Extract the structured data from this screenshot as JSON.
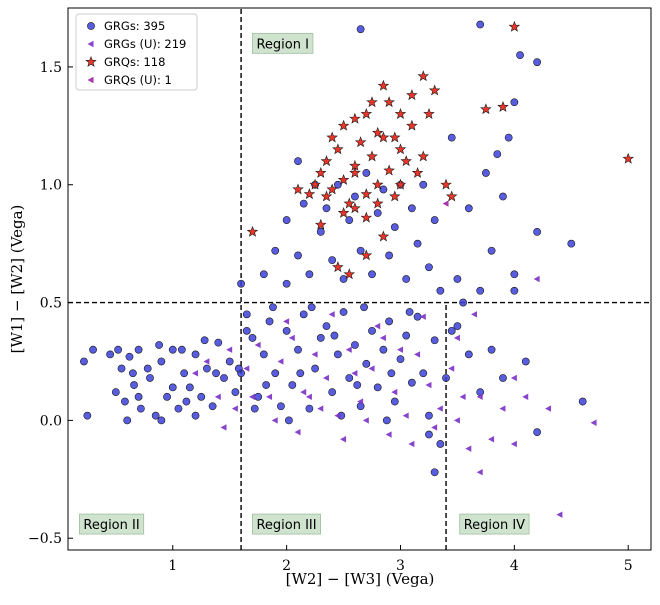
{
  "chart_data": {
    "type": "scatter",
    "xlabel": "[W2] − [W3] (Vega)",
    "ylabel": "[W1] − [W2] (Vega)",
    "xlim": [
      0.08,
      5.2
    ],
    "ylim": [
      -0.55,
      1.75
    ],
    "xticks": [
      {
        "v": 1,
        "label": "1"
      },
      {
        "v": 2,
        "label": "2"
      },
      {
        "v": 3,
        "label": "3"
      },
      {
        "v": 4,
        "label": "4"
      },
      {
        "v": 5,
        "label": "5"
      }
    ],
    "yticks": [
      {
        "v": -0.5,
        "label": "−0.5"
      },
      {
        "v": 0.0,
        "label": "0.0"
      },
      {
        "v": 0.5,
        "label": "0.5"
      },
      {
        "v": 1.0,
        "label": "1.0"
      },
      {
        "v": 1.5,
        "label": "1.5"
      }
    ],
    "cut_lines": [
      {
        "name": "vertical-1.6",
        "x": 1.6,
        "y_from": -0.55,
        "y_to": 1.75
      },
      {
        "name": "horizontal-0.5",
        "y": 0.5,
        "x_from": 0.08,
        "x_to": 5.2
      },
      {
        "name": "vertical-3.4",
        "x": 3.4,
        "y_from": -0.55,
        "y_to": 0.5
      }
    ],
    "regions": [
      {
        "label": "Region I",
        "x": 1.7,
        "y": 1.6
      },
      {
        "label": "Region II",
        "x": 0.18,
        "y": -0.44
      },
      {
        "label": "Region III",
        "x": 1.7,
        "y": -0.44
      },
      {
        "label": "Region IV",
        "x": 3.52,
        "y": -0.44
      }
    ],
    "colors": {
      "grg": "#3b3fd9",
      "grg_u": "#7b2fc7",
      "grq": "#e8362a",
      "grq_u": "#a020a0",
      "edge": "#1a1a1a",
      "region_bg": "#cfe3cf",
      "region_edge": "#9fbf9f"
    },
    "legend": [
      {
        "key": "grg",
        "label": "GRGs: 395"
      },
      {
        "key": "grg_u",
        "label": "GRGs (U): 219"
      },
      {
        "key": "grq",
        "label": "GRQs: 118"
      },
      {
        "key": "grq_u",
        "label": "GRQs (U): 1"
      }
    ],
    "series": [
      {
        "name": "GRGs",
        "key": "grg",
        "marker": "circle",
        "count": 395,
        "note": "detections; dense clump x 0.4-1.6 y 0-0.3, band x 1.6-3.4 y 0-0.5, cloud x 2-3.5 y 0.5-1.1, scattered outliers",
        "points": [
          [
            0.3,
            0.3
          ],
          [
            0.45,
            0.28
          ],
          [
            0.55,
            0.22
          ],
          [
            0.62,
            0.27
          ],
          [
            0.7,
            0.3
          ],
          [
            0.5,
            0.12
          ],
          [
            0.58,
            0.08
          ],
          [
            0.66,
            0.15
          ],
          [
            0.72,
            0.05
          ],
          [
            0.8,
            0.18
          ],
          [
            0.85,
            0.02
          ],
          [
            0.9,
            0.25
          ],
          [
            0.95,
            0.1
          ],
          [
            1.0,
            0.3
          ],
          [
            1.05,
            0.05
          ],
          [
            1.1,
            0.2
          ],
          [
            1.15,
            0.14
          ],
          [
            1.2,
            0.28
          ],
          [
            1.25,
            0.1
          ],
          [
            1.3,
            0.22
          ],
          [
            1.35,
            0.06
          ],
          [
            1.4,
            0.33
          ],
          [
            1.45,
            0.18
          ],
          [
            1.5,
            0.25
          ],
          [
            1.55,
            0.12
          ],
          [
            0.6,
            0.0
          ],
          [
            0.7,
            0.1
          ],
          [
            0.9,
            0.0
          ],
          [
            1.0,
            0.14
          ],
          [
            1.2,
            0.02
          ],
          [
            0.78,
            0.22
          ],
          [
            0.88,
            0.32
          ],
          [
            1.08,
            0.3
          ],
          [
            1.28,
            0.34
          ],
          [
            0.25,
            0.02
          ],
          [
            0.22,
            0.25
          ],
          [
            0.52,
            0.3
          ],
          [
            0.65,
            0.2
          ],
          [
            1.38,
            0.2
          ],
          [
            1.12,
            0.08
          ],
          [
            1.6,
            0.2
          ],
          [
            1.7,
            0.35
          ],
          [
            1.75,
            0.1
          ],
          [
            1.8,
            0.28
          ],
          [
            1.85,
            0.42
          ],
          [
            1.9,
            0.2
          ],
          [
            1.95,
            0.06
          ],
          [
            2.0,
            0.38
          ],
          [
            2.05,
            0.15
          ],
          [
            2.1,
            0.3
          ],
          [
            2.15,
            0.45
          ],
          [
            2.2,
            0.05
          ],
          [
            2.25,
            0.22
          ],
          [
            2.3,
            0.35
          ],
          [
            2.35,
            0.4
          ],
          [
            2.4,
            0.12
          ],
          [
            2.45,
            0.28
          ],
          [
            2.5,
            0.46
          ],
          [
            2.55,
            0.18
          ],
          [
            2.6,
            0.32
          ],
          [
            2.65,
            0.06
          ],
          [
            2.7,
            0.24
          ],
          [
            2.75,
            0.38
          ],
          [
            2.8,
            0.14
          ],
          [
            2.85,
            0.3
          ],
          [
            2.9,
            0.42
          ],
          [
            2.95,
            0.08
          ],
          [
            3.0,
            0.26
          ],
          [
            3.05,
            0.36
          ],
          [
            3.1,
            0.16
          ],
          [
            3.15,
            0.44
          ],
          [
            3.2,
            0.2
          ],
          [
            3.25,
            0.02
          ],
          [
            3.3,
            0.34
          ],
          [
            1.65,
            0.45
          ],
          [
            1.72,
            0.05
          ],
          [
            1.88,
            0.48
          ],
          [
            2.02,
            0.0
          ],
          [
            2.22,
            0.48
          ],
          [
            2.48,
            0.02
          ],
          [
            2.68,
            0.48
          ],
          [
            2.88,
            0.0
          ],
          [
            3.08,
            0.46
          ],
          [
            1.82,
            0.15
          ],
          [
            2.12,
            0.2
          ],
          [
            2.42,
            0.36
          ],
          [
            2.62,
            0.15
          ],
          [
            2.92,
            0.2
          ],
          [
            2.0,
            0.58
          ],
          [
            2.1,
            0.7
          ],
          [
            2.2,
            0.62
          ],
          [
            2.3,
            0.8
          ],
          [
            2.35,
            0.9
          ],
          [
            2.4,
            0.68
          ],
          [
            2.45,
            1.0
          ],
          [
            2.5,
            0.6
          ],
          [
            2.55,
            0.85
          ],
          [
            2.6,
            0.95
          ],
          [
            2.65,
            0.72
          ],
          [
            2.7,
            1.05
          ],
          [
            2.75,
            0.62
          ],
          [
            2.8,
            0.88
          ],
          [
            2.85,
            0.98
          ],
          [
            2.9,
            0.7
          ],
          [
            2.95,
            0.82
          ],
          [
            3.0,
            1.0
          ],
          [
            3.05,
            0.6
          ],
          [
            3.1,
            0.9
          ],
          [
            3.15,
            0.75
          ],
          [
            3.2,
            1.0
          ],
          [
            3.25,
            0.65
          ],
          [
            3.3,
            0.85
          ],
          [
            3.35,
            0.55
          ],
          [
            2.25,
            1.0
          ],
          [
            2.15,
            0.92
          ],
          [
            1.9,
            0.72
          ],
          [
            1.8,
            0.62
          ],
          [
            3.5,
            0.6
          ],
          [
            3.6,
            0.9
          ],
          [
            3.7,
            0.55
          ],
          [
            3.8,
            0.72
          ],
          [
            3.9,
            0.95
          ],
          [
            4.0,
            0.62
          ],
          [
            4.2,
            0.8
          ],
          [
            4.5,
            0.75
          ],
          [
            3.85,
            1.13
          ],
          [
            4.0,
            1.35
          ],
          [
            4.05,
            1.55
          ],
          [
            4.2,
            1.52
          ],
          [
            3.95,
            1.2
          ],
          [
            3.7,
            1.68
          ],
          [
            2.65,
            1.66
          ],
          [
            3.45,
            1.2
          ],
          [
            3.75,
            1.05
          ],
          [
            2.1,
            1.1
          ],
          [
            2.0,
            0.85
          ],
          [
            3.5,
            0.4
          ],
          [
            3.6,
            0.28
          ],
          [
            3.7,
            0.12
          ],
          [
            3.8,
            0.3
          ],
          [
            3.4,
            0.18
          ],
          [
            3.45,
            0.38
          ],
          [
            3.35,
            -0.1
          ],
          [
            3.3,
            -0.22
          ],
          [
            3.25,
            -0.06
          ],
          [
            3.9,
            0.18
          ],
          [
            4.0,
            0.55
          ],
          [
            4.1,
            0.25
          ],
          [
            4.2,
            -0.05
          ],
          [
            4.6,
            0.08
          ],
          [
            3.55,
            0.5
          ],
          [
            1.6,
            0.58
          ],
          [
            1.65,
            0.38
          ],
          [
            1.58,
            0.22
          ]
        ]
      },
      {
        "name": "GRGs (U)",
        "key": "grg_u",
        "marker": "triangle-left",
        "count": 219,
        "note": "upper limits; spread x 1.2-3.6 y -0.1-0.45 plus sparse outliers",
        "points": [
          [
            1.2,
            0.2
          ],
          [
            1.3,
            0.25
          ],
          [
            1.4,
            0.1
          ],
          [
            1.5,
            0.3
          ],
          [
            1.55,
            0.05
          ],
          [
            1.65,
            0.22
          ],
          [
            1.75,
            0.32
          ],
          [
            1.85,
            0.1
          ],
          [
            1.95,
            0.25
          ],
          [
            2.05,
            0.35
          ],
          [
            2.15,
            0.12
          ],
          [
            2.25,
            0.28
          ],
          [
            2.35,
            0.18
          ],
          [
            2.45,
            0.02
          ],
          [
            2.55,
            0.3
          ],
          [
            2.65,
            0.08
          ],
          [
            2.75,
            0.22
          ],
          [
            2.85,
            0.35
          ],
          [
            2.95,
            0.12
          ],
          [
            3.05,
            0.02
          ],
          [
            3.15,
            0.28
          ],
          [
            3.25,
            0.15
          ],
          [
            3.35,
            0.05
          ],
          [
            3.45,
            0.22
          ],
          [
            3.55,
            0.1
          ],
          [
            1.7,
            0.1
          ],
          [
            1.9,
            0.0
          ],
          [
            2.1,
            -0.05
          ],
          [
            2.3,
            0.05
          ],
          [
            2.5,
            -0.08
          ],
          [
            2.7,
            0.0
          ],
          [
            2.9,
            -0.06
          ],
          [
            3.1,
            -0.1
          ],
          [
            3.3,
            -0.03
          ],
          [
            2.0,
            0.42
          ],
          [
            2.4,
            0.45
          ],
          [
            2.8,
            0.4
          ],
          [
            3.2,
            0.44
          ],
          [
            1.45,
            -0.03
          ],
          [
            2.2,
            0.1
          ],
          [
            2.6,
            0.2
          ],
          [
            3.0,
            0.3
          ],
          [
            3.5,
            0.35
          ],
          [
            3.6,
            -0.12
          ],
          [
            3.7,
            -0.22
          ],
          [
            3.9,
            0.05
          ],
          [
            4.0,
            -0.1
          ],
          [
            4.1,
            0.1
          ],
          [
            4.3,
            0.05
          ],
          [
            4.4,
            -0.4
          ],
          [
            4.7,
            -0.01
          ],
          [
            3.8,
            -0.08
          ],
          [
            3.5,
            0.0
          ],
          [
            4.0,
            0.18
          ],
          [
            4.2,
            0.6
          ],
          [
            3.7,
            0.1
          ],
          [
            3.65,
            0.45
          ]
        ]
      },
      {
        "name": "GRQs",
        "key": "grq",
        "marker": "star",
        "count": 118,
        "note": "detections; dense cluster x 2.2-3.3 y 0.85-1.3 with outliers",
        "points": [
          [
            2.3,
            1.05
          ],
          [
            2.35,
            1.1
          ],
          [
            2.4,
            0.98
          ],
          [
            2.45,
            1.15
          ],
          [
            2.5,
            1.02
          ],
          [
            2.55,
            0.92
          ],
          [
            2.6,
            1.08
          ],
          [
            2.65,
            1.18
          ],
          [
            2.7,
            0.96
          ],
          [
            2.75,
            1.12
          ],
          [
            2.8,
            1.0
          ],
          [
            2.85,
            1.2
          ],
          [
            2.9,
            1.06
          ],
          [
            2.95,
            0.95
          ],
          [
            3.0,
            1.15
          ],
          [
            3.05,
            1.1
          ],
          [
            3.1,
            1.25
          ],
          [
            3.15,
            1.05
          ],
          [
            3.2,
            1.12
          ],
          [
            3.25,
            1.3
          ],
          [
            2.4,
            1.2
          ],
          [
            2.5,
            1.25
          ],
          [
            2.6,
            1.28
          ],
          [
            2.7,
            1.3
          ],
          [
            2.8,
            1.22
          ],
          [
            2.9,
            1.35
          ],
          [
            3.0,
            1.3
          ],
          [
            2.5,
            0.88
          ],
          [
            2.6,
            0.9
          ],
          [
            2.7,
            0.86
          ],
          [
            2.8,
            0.92
          ],
          [
            2.35,
            0.95
          ],
          [
            2.25,
            1.0
          ],
          [
            2.2,
            0.96
          ],
          [
            2.1,
            0.98
          ],
          [
            2.45,
            0.65
          ],
          [
            2.55,
            0.62
          ],
          [
            2.7,
            0.7
          ],
          [
            2.85,
            0.78
          ],
          [
            3.0,
            1.0
          ],
          [
            3.4,
            1.0
          ],
          [
            3.45,
            0.95
          ],
          [
            2.75,
            1.35
          ],
          [
            2.85,
            1.42
          ],
          [
            3.1,
            1.38
          ],
          [
            3.2,
            1.46
          ],
          [
            3.3,
            1.4
          ],
          [
            3.75,
            1.32
          ],
          [
            3.9,
            1.33
          ],
          [
            4.0,
            1.67
          ],
          [
            5.0,
            1.11
          ],
          [
            1.7,
            0.8
          ],
          [
            2.3,
            0.83
          ],
          [
            2.6,
            1.05
          ],
          [
            2.95,
            1.2
          ]
        ]
      },
      {
        "name": "GRQs (U)",
        "key": "grq_u",
        "marker": "triangle-left",
        "count": 1,
        "points": [
          [
            3.4,
            0.92
          ]
        ]
      }
    ]
  }
}
